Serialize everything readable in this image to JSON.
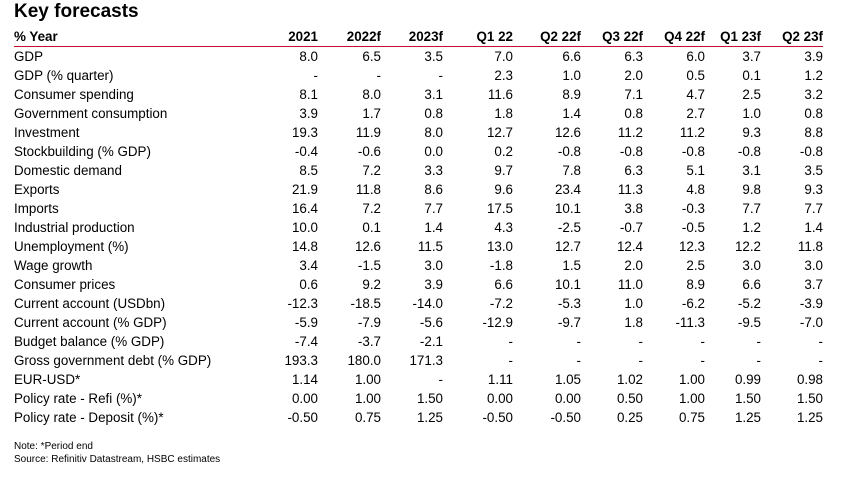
{
  "title": "Key forecasts",
  "table": {
    "headers": [
      "% Year",
      "2021",
      "2022f",
      "2023f",
      "Q1 22",
      "Q2 22f",
      "Q3 22f",
      "Q4 22f",
      "Q1 23f",
      "Q2 23f"
    ],
    "rows": [
      {
        "label": "GDP",
        "values": [
          "8.0",
          "6.5",
          "3.5",
          "7.0",
          "6.6",
          "6.3",
          "6.0",
          "3.7",
          "3.9"
        ]
      },
      {
        "label": "GDP (% quarter)",
        "values": [
          "-",
          "-",
          "-",
          "2.3",
          "1.0",
          "2.0",
          "0.5",
          "0.1",
          "1.2"
        ]
      },
      {
        "label": "Consumer spending",
        "values": [
          "8.1",
          "8.0",
          "3.1",
          "11.6",
          "8.9",
          "7.1",
          "4.7",
          "2.5",
          "3.2"
        ]
      },
      {
        "label": "Government consumption",
        "values": [
          "3.9",
          "1.7",
          "0.8",
          "1.8",
          "1.4",
          "0.8",
          "2.7",
          "1.0",
          "0.8"
        ]
      },
      {
        "label": "Investment",
        "values": [
          "19.3",
          "11.9",
          "8.0",
          "12.7",
          "12.6",
          "11.2",
          "11.2",
          "9.3",
          "8.8"
        ]
      },
      {
        "label": "Stockbuilding (% GDP)",
        "values": [
          "-0.4",
          "-0.6",
          "0.0",
          "0.2",
          "-0.8",
          "-0.8",
          "-0.8",
          "-0.8",
          "-0.8"
        ]
      },
      {
        "label": "Domestic demand",
        "values": [
          "8.5",
          "7.2",
          "3.3",
          "9.7",
          "7.8",
          "6.3",
          "5.1",
          "3.1",
          "3.5"
        ]
      },
      {
        "label": "Exports",
        "values": [
          "21.9",
          "11.8",
          "8.6",
          "9.6",
          "23.4",
          "11.3",
          "4.8",
          "9.8",
          "9.3"
        ]
      },
      {
        "label": "Imports",
        "values": [
          "16.4",
          "7.2",
          "7.7",
          "17.5",
          "10.1",
          "3.8",
          "-0.3",
          "7.7",
          "7.7"
        ]
      },
      {
        "label": "Industrial production",
        "values": [
          "10.0",
          "0.1",
          "1.4",
          "4.3",
          "-2.5",
          "-0.7",
          "-0.5",
          "1.2",
          "1.4"
        ]
      },
      {
        "label": "Unemployment (%)",
        "values": [
          "14.8",
          "12.6",
          "11.5",
          "13.0",
          "12.7",
          "12.4",
          "12.3",
          "12.2",
          "11.8"
        ]
      },
      {
        "label": "Wage growth",
        "values": [
          "3.4",
          "-1.5",
          "3.0",
          "-1.8",
          "1.5",
          "2.0",
          "2.5",
          "3.0",
          "3.0"
        ]
      },
      {
        "label": "Consumer prices",
        "values": [
          "0.6",
          "9.2",
          "3.9",
          "6.6",
          "10.1",
          "11.0",
          "8.9",
          "6.6",
          "3.7"
        ]
      },
      {
        "label": "Current account (USDbn)",
        "values": [
          "-12.3",
          "-18.5",
          "-14.0",
          "-7.2",
          "-5.3",
          "1.0",
          "-6.2",
          "-5.2",
          "-3.9"
        ]
      },
      {
        "label": "Current account (% GDP)",
        "values": [
          "-5.9",
          "-7.9",
          "-5.6",
          "-12.9",
          "-9.7",
          "1.8",
          "-11.3",
          "-9.5",
          "-7.0"
        ]
      },
      {
        "label": "Budget balance (% GDP)",
        "values": [
          "-7.4",
          "-3.7",
          "-2.1",
          "-",
          "-",
          "-",
          "-",
          "-",
          "-"
        ]
      },
      {
        "label": "Gross government debt (% GDP)",
        "values": [
          "193.3",
          "180.0",
          "171.3",
          "-",
          "-",
          "-",
          "-",
          "-",
          "-"
        ]
      },
      {
        "label": "EUR-USD*",
        "values": [
          "1.14",
          "1.00",
          "-",
          "1.11",
          "1.05",
          "1.02",
          "1.00",
          "0.99",
          "0.98"
        ]
      },
      {
        "label": "Policy rate - Refi (%)*",
        "values": [
          "0.00",
          "1.00",
          "1.50",
          "0.00",
          "0.00",
          "0.50",
          "1.00",
          "1.50",
          "1.50"
        ]
      },
      {
        "label": "Policy rate - Deposit (%)*",
        "values": [
          "-0.50",
          "0.75",
          "1.25",
          "-0.50",
          "-0.50",
          "0.25",
          "0.75",
          "1.25",
          "1.25"
        ]
      }
    ]
  },
  "notes": {
    "note": "Note: *Period end",
    "source": "Source: Refinitiv Datastream, HSBC estimates"
  },
  "colors": {
    "header_rule": "#c8102e"
  }
}
